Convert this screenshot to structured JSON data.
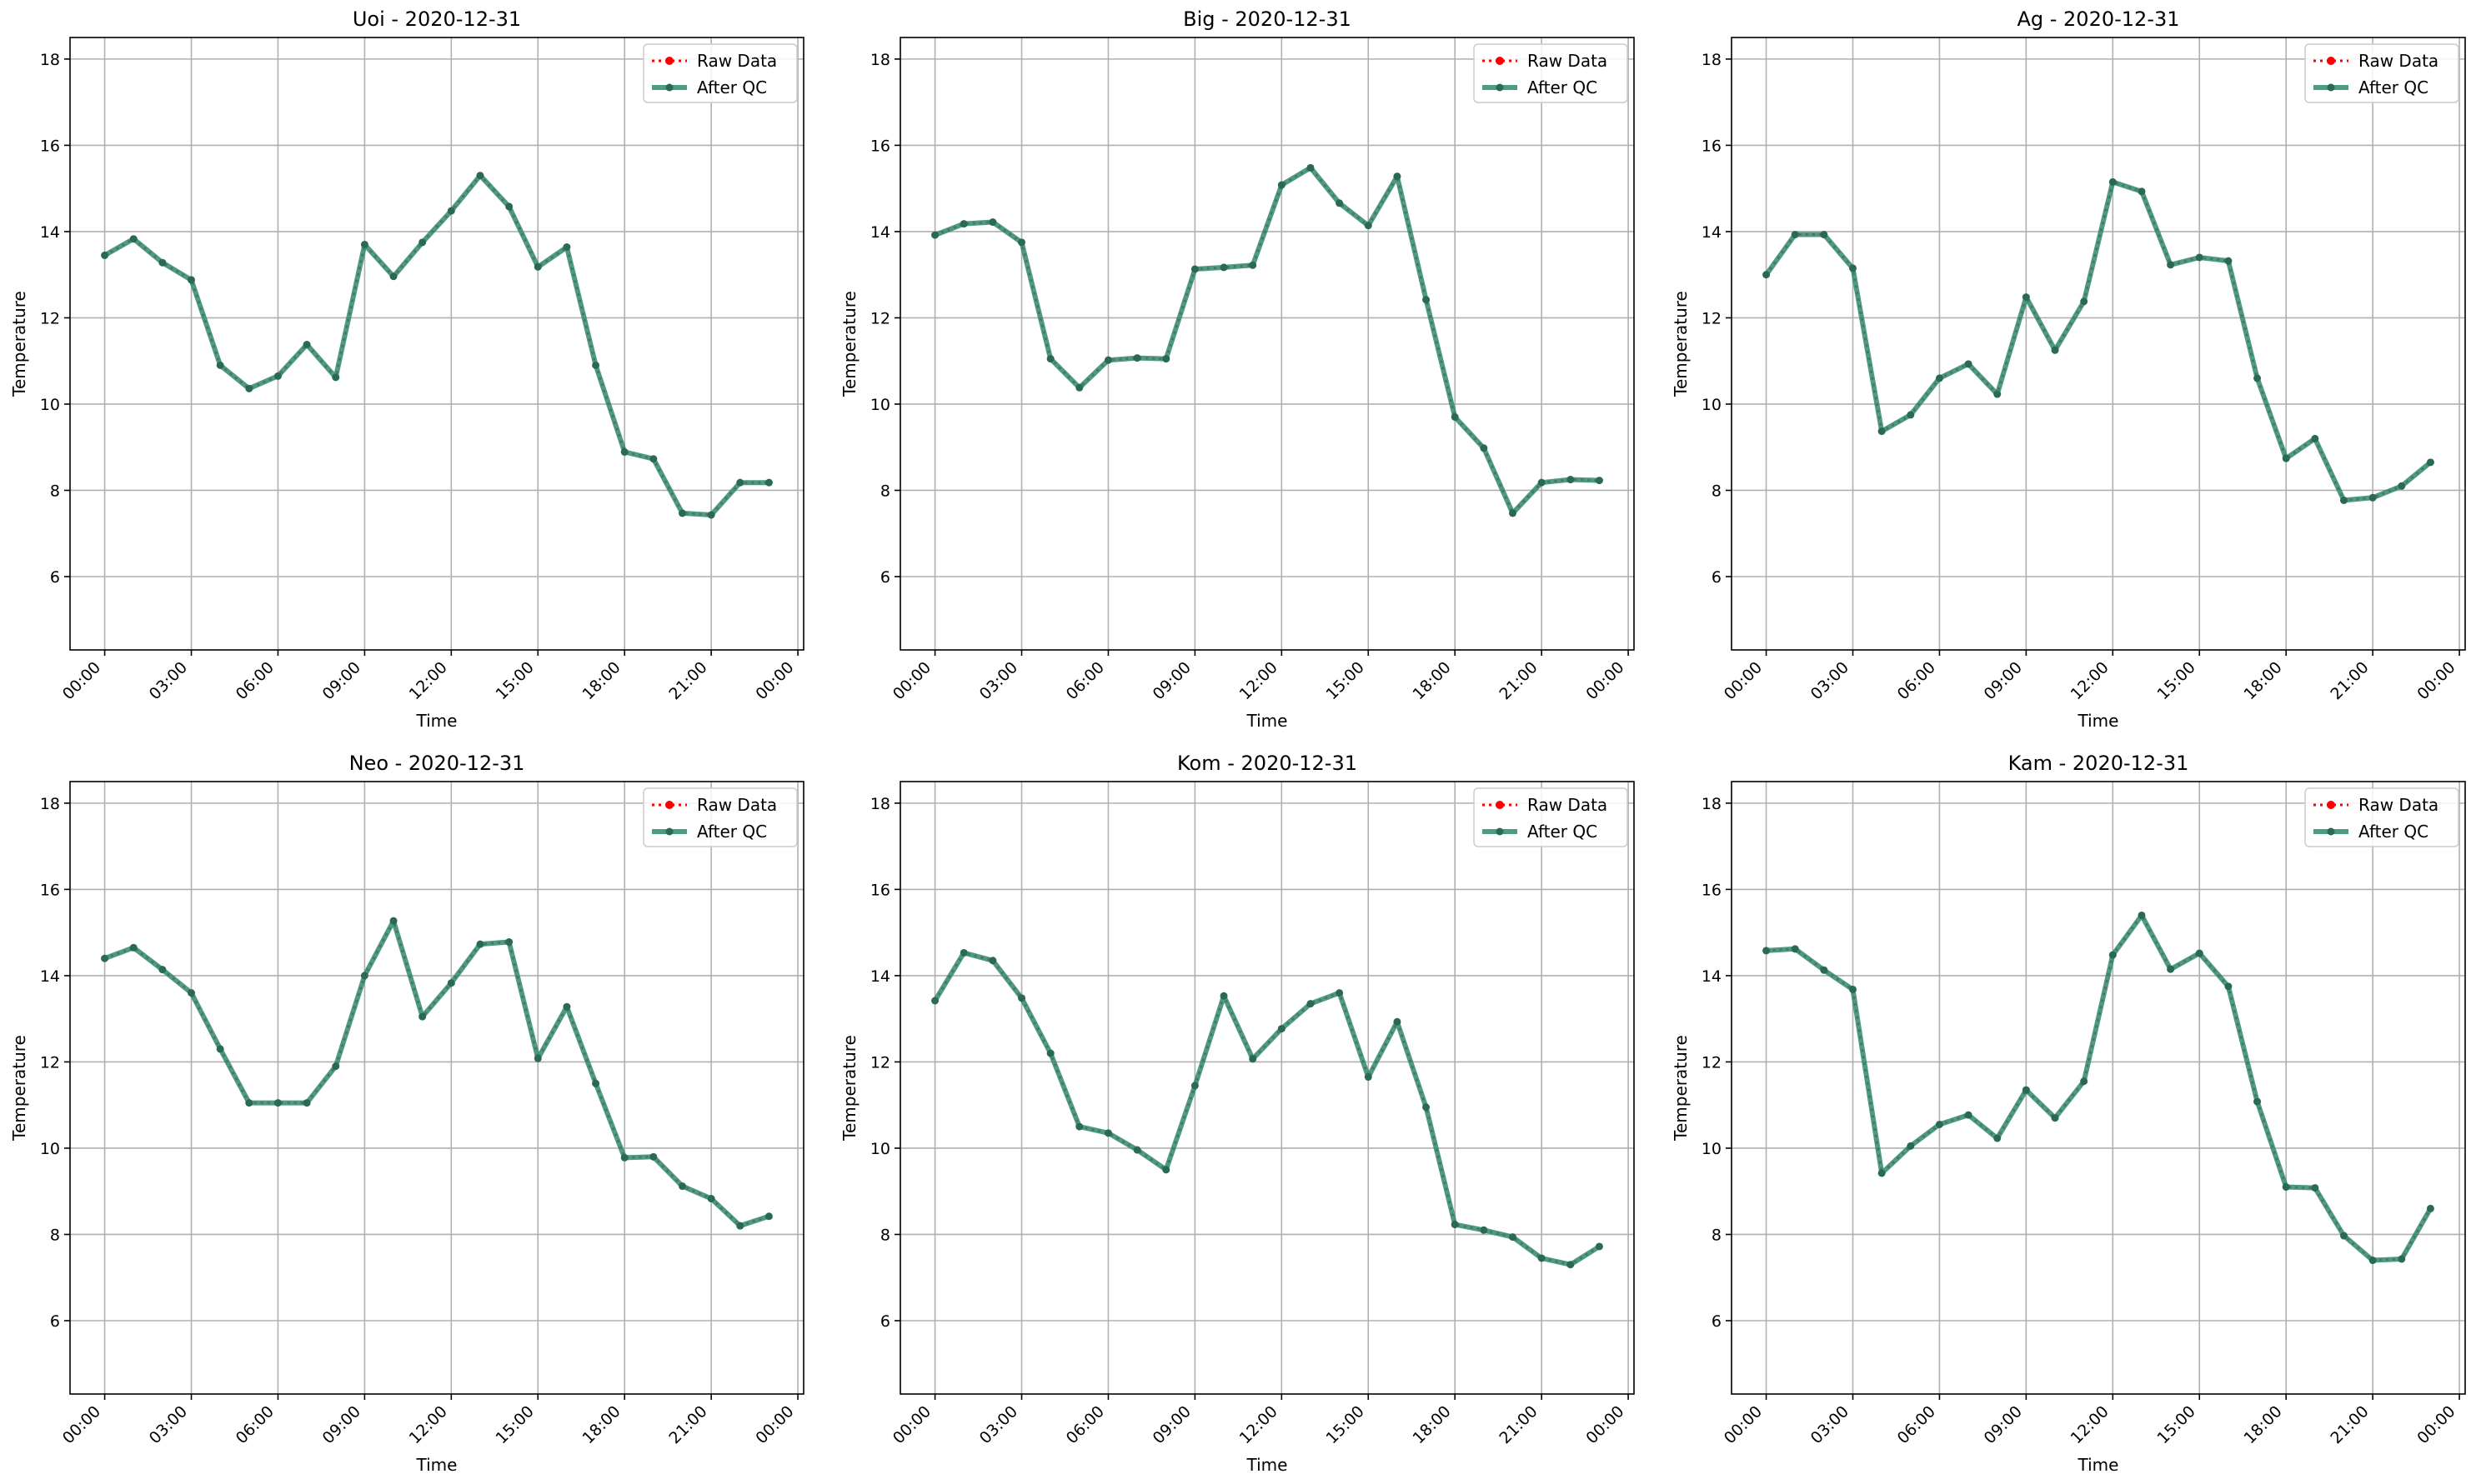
{
  "colors": {
    "raw": "#ff0000",
    "qc": "#2e8b6b",
    "grid": "#b0b0b0",
    "axes": "#000000"
  },
  "chart_data": [
    {
      "type": "line",
      "title": "Uoi - 2020-12-31",
      "xlabel": "Time",
      "ylabel": "Temperature",
      "ylim": [
        4.3,
        18.5
      ],
      "yticks": [
        6,
        8,
        10,
        12,
        14,
        16,
        18
      ],
      "xticks": [
        "00:00",
        "03:00",
        "06:00",
        "09:00",
        "12:00",
        "15:00",
        "18:00",
        "21:00",
        "00:00"
      ],
      "x_hours": [
        0,
        1,
        2,
        3,
        4,
        5,
        6,
        7,
        8,
        9,
        10,
        11,
        12,
        13,
        14,
        15,
        16,
        17,
        18,
        19,
        20,
        21,
        22,
        23
      ],
      "legend_position": "top-right",
      "grid": true,
      "series": [
        {
          "name": "Raw Data",
          "style": "dotted",
          "values": [
            13.45,
            13.83,
            13.28,
            12.88,
            10.9,
            10.36,
            10.65,
            11.38,
            10.62,
            13.7,
            12.96,
            13.75,
            14.48,
            15.3,
            14.58,
            13.18,
            13.64,
            10.9,
            8.89,
            8.73,
            7.47,
            7.43,
            8.18,
            8.18
          ]
        },
        {
          "name": "After QC",
          "style": "solid",
          "values": [
            13.45,
            13.83,
            13.28,
            12.88,
            10.9,
            10.36,
            10.65,
            11.38,
            10.62,
            13.7,
            12.96,
            13.75,
            14.48,
            15.3,
            14.58,
            13.18,
            13.64,
            10.9,
            8.89,
            8.73,
            7.47,
            7.43,
            8.18,
            8.18
          ]
        }
      ]
    },
    {
      "type": "line",
      "title": "Big - 2020-12-31",
      "xlabel": "Time",
      "ylabel": "Temperature",
      "ylim": [
        4.3,
        18.5
      ],
      "yticks": [
        6,
        8,
        10,
        12,
        14,
        16,
        18
      ],
      "xticks": [
        "00:00",
        "03:00",
        "06:00",
        "09:00",
        "12:00",
        "15:00",
        "18:00",
        "21:00",
        "00:00"
      ],
      "x_hours": [
        0,
        1,
        2,
        3,
        4,
        5,
        6,
        7,
        8,
        9,
        10,
        11,
        12,
        13,
        14,
        15,
        16,
        17,
        18,
        19,
        20,
        21,
        22,
        23
      ],
      "legend_position": "top-right",
      "grid": true,
      "series": [
        {
          "name": "Raw Data",
          "style": "dotted",
          "values": [
            13.92,
            14.18,
            14.22,
            13.75,
            11.05,
            10.38,
            11.02,
            11.07,
            11.05,
            13.13,
            13.17,
            13.22,
            15.08,
            15.48,
            14.66,
            14.14,
            15.28,
            12.42,
            9.7,
            8.98,
            7.47,
            8.18,
            8.25,
            8.23
          ]
        },
        {
          "name": "After QC",
          "style": "solid",
          "values": [
            13.92,
            14.18,
            14.22,
            13.75,
            11.05,
            10.38,
            11.02,
            11.07,
            11.05,
            13.13,
            13.17,
            13.22,
            15.08,
            15.48,
            14.66,
            14.14,
            15.28,
            12.42,
            9.7,
            8.98,
            7.47,
            8.18,
            8.25,
            8.23
          ]
        }
      ]
    },
    {
      "type": "line",
      "title": "Ag - 2020-12-31",
      "xlabel": "Time",
      "ylabel": "Temperature",
      "ylim": [
        4.3,
        18.5
      ],
      "yticks": [
        6,
        8,
        10,
        12,
        14,
        16,
        18
      ],
      "xticks": [
        "00:00",
        "03:00",
        "06:00",
        "09:00",
        "12:00",
        "15:00",
        "18:00",
        "21:00",
        "00:00"
      ],
      "x_hours": [
        0,
        1,
        2,
        3,
        4,
        5,
        6,
        7,
        8,
        9,
        10,
        11,
        12,
        13,
        14,
        15,
        16,
        17,
        18,
        19,
        20,
        21,
        22,
        23
      ],
      "legend_position": "top-right",
      "grid": true,
      "series": [
        {
          "name": "Raw Data",
          "style": "dotted",
          "values": [
            13.0,
            13.93,
            13.93,
            13.15,
            9.37,
            9.75,
            10.6,
            10.93,
            10.23,
            12.48,
            11.25,
            12.38,
            15.15,
            14.93,
            13.23,
            13.4,
            13.32,
            10.6,
            8.74,
            9.2,
            7.77,
            7.83,
            8.1,
            8.65
          ]
        },
        {
          "name": "After QC",
          "style": "solid",
          "values": [
            13.0,
            13.93,
            13.93,
            13.15,
            9.37,
            9.75,
            10.6,
            10.93,
            10.23,
            12.48,
            11.25,
            12.38,
            15.15,
            14.93,
            13.23,
            13.4,
            13.32,
            10.6,
            8.74,
            9.2,
            7.77,
            7.83,
            8.1,
            8.65
          ]
        }
      ]
    },
    {
      "type": "line",
      "title": "Neo - 2020-12-31",
      "xlabel": "Time",
      "ylabel": "Temperature",
      "ylim": [
        4.3,
        18.5
      ],
      "yticks": [
        6,
        8,
        10,
        12,
        14,
        16,
        18
      ],
      "xticks": [
        "00:00",
        "03:00",
        "06:00",
        "09:00",
        "12:00",
        "15:00",
        "18:00",
        "21:00",
        "00:00"
      ],
      "x_hours": [
        0,
        1,
        2,
        3,
        4,
        5,
        6,
        7,
        8,
        9,
        10,
        11,
        12,
        13,
        14,
        15,
        16,
        17,
        18,
        19,
        20,
        21,
        22,
        23
      ],
      "legend_position": "top-right",
      "grid": true,
      "series": [
        {
          "name": "Raw Data",
          "style": "dotted",
          "values": [
            14.4,
            14.65,
            14.14,
            13.6,
            12.3,
            11.05,
            11.05,
            11.05,
            11.9,
            14.0,
            15.27,
            13.05,
            13.83,
            14.73,
            14.78,
            12.08,
            13.28,
            11.5,
            9.78,
            9.8,
            9.12,
            8.83,
            8.2,
            8.42
          ]
        },
        {
          "name": "After QC",
          "style": "solid",
          "values": [
            14.4,
            14.65,
            14.14,
            13.6,
            12.3,
            11.05,
            11.05,
            11.05,
            11.9,
            14.0,
            15.27,
            13.05,
            13.83,
            14.73,
            14.78,
            12.08,
            13.28,
            11.5,
            9.78,
            9.8,
            9.12,
            8.83,
            8.2,
            8.42
          ]
        }
      ]
    },
    {
      "type": "line",
      "title": "Kom - 2020-12-31",
      "xlabel": "Time",
      "ylabel": "Temperature",
      "ylim": [
        4.3,
        18.5
      ],
      "yticks": [
        6,
        8,
        10,
        12,
        14,
        16,
        18
      ],
      "xticks": [
        "00:00",
        "03:00",
        "06:00",
        "09:00",
        "12:00",
        "15:00",
        "18:00",
        "21:00",
        "00:00"
      ],
      "x_hours": [
        0,
        1,
        2,
        3,
        4,
        5,
        6,
        7,
        8,
        9,
        10,
        11,
        12,
        13,
        14,
        15,
        16,
        17,
        18,
        19,
        20,
        21,
        22,
        23
      ],
      "legend_position": "top-right",
      "grid": true,
      "series": [
        {
          "name": "Raw Data",
          "style": "dotted",
          "values": [
            13.42,
            14.53,
            14.35,
            13.48,
            12.2,
            10.5,
            10.35,
            9.96,
            9.5,
            11.45,
            13.53,
            12.07,
            12.77,
            13.35,
            13.6,
            11.65,
            12.93,
            10.95,
            8.23,
            8.1,
            7.94,
            7.45,
            7.3,
            7.72
          ]
        },
        {
          "name": "After QC",
          "style": "solid",
          "values": [
            13.42,
            14.53,
            14.35,
            13.48,
            12.2,
            10.5,
            10.35,
            9.96,
            9.5,
            11.45,
            13.53,
            12.07,
            12.77,
            13.35,
            13.6,
            11.65,
            12.93,
            10.95,
            8.23,
            8.1,
            7.94,
            7.45,
            7.3,
            7.72
          ]
        }
      ]
    },
    {
      "type": "line",
      "title": "Kam - 2020-12-31",
      "xlabel": "Time",
      "ylabel": "Temperature",
      "ylim": [
        4.3,
        18.5
      ],
      "yticks": [
        6,
        8,
        10,
        12,
        14,
        16,
        18
      ],
      "xticks": [
        "00:00",
        "03:00",
        "06:00",
        "09:00",
        "12:00",
        "15:00",
        "18:00",
        "21:00",
        "00:00"
      ],
      "x_hours": [
        0,
        1,
        2,
        3,
        4,
        5,
        6,
        7,
        8,
        9,
        10,
        11,
        12,
        13,
        14,
        15,
        16,
        17,
        18,
        19,
        20,
        21,
        22,
        23
      ],
      "legend_position": "top-right",
      "grid": true,
      "series": [
        {
          "name": "Raw Data",
          "style": "dotted",
          "values": [
            14.58,
            14.62,
            14.13,
            13.68,
            9.42,
            10.05,
            10.55,
            10.77,
            10.23,
            11.35,
            10.7,
            11.55,
            14.48,
            15.4,
            14.15,
            14.52,
            13.75,
            11.08,
            9.1,
            9.08,
            7.97,
            7.4,
            7.43,
            8.6
          ]
        },
        {
          "name": "After QC",
          "style": "solid",
          "values": [
            14.58,
            14.62,
            14.13,
            13.68,
            9.42,
            10.05,
            10.55,
            10.77,
            10.23,
            11.35,
            10.7,
            11.55,
            14.48,
            15.4,
            14.15,
            14.52,
            13.75,
            11.08,
            9.1,
            9.08,
            7.97,
            7.4,
            7.43,
            8.6
          ]
        }
      ]
    }
  ]
}
